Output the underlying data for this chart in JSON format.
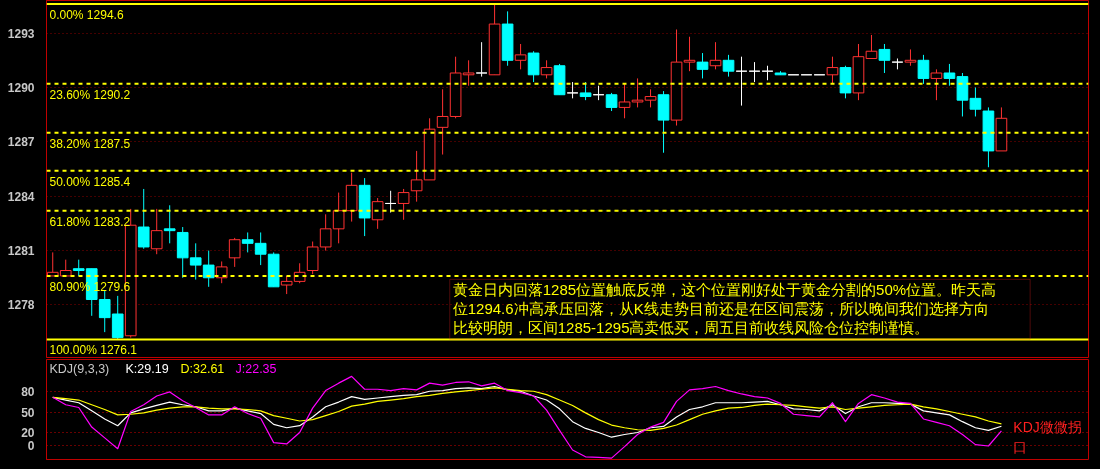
{
  "chart_data": [
    {
      "type": "candlestick",
      "categories": [
        null,
        null,
        null,
        null,
        null,
        null,
        null,
        null,
        null,
        null,
        null,
        null,
        null,
        null,
        null,
        null,
        null,
        null,
        null,
        null,
        null,
        null,
        null,
        null,
        null,
        null,
        null,
        null,
        null,
        null,
        null,
        null,
        null,
        null,
        null,
        null,
        null,
        null,
        null,
        null,
        null,
        null,
        null,
        null,
        null,
        null,
        null,
        null,
        null,
        null,
        null,
        null,
        null,
        null,
        null,
        null,
        null,
        null,
        null,
        null,
        null,
        null,
        null,
        null,
        null,
        null,
        null,
        null,
        null,
        null,
        null,
        null,
        null,
        null
      ],
      "ohlc": [
        [
          1279.6,
          1280.9,
          1279.6,
          1279.8
        ],
        [
          1279.6,
          1280.5,
          1279.6,
          1279.9
        ],
        [
          1280.0,
          1280.5,
          1279.6,
          1279.9
        ],
        [
          1280.0,
          1280.0,
          1277.4,
          1278.3
        ],
        [
          1278.3,
          1278.8,
          1276.5,
          1277.3
        ],
        [
          1277.5,
          1278.5,
          1276.1,
          1276.2
        ],
        [
          1276.3,
          1283.3,
          1276.2,
          1282.4
        ],
        [
          1282.3,
          1284.4,
          1281.1,
          1281.2
        ],
        [
          1281.1,
          1283.3,
          1280.8,
          1282.1
        ],
        [
          1282.2,
          1283.5,
          1281.4,
          1282.1
        ],
        [
          1282.0,
          1282.3,
          1279.5,
          1280.6
        ],
        [
          1280.6,
          1281.4,
          1279.4,
          1280.2
        ],
        [
          1280.2,
          1281.0,
          1279.0,
          1279.5
        ],
        [
          1279.5,
          1280.4,
          1279.2,
          1280.1
        ],
        [
          1280.6,
          1281.7,
          1280.1,
          1281.6
        ],
        [
          1281.6,
          1282.0,
          1280.9,
          1281.4
        ],
        [
          1281.4,
          1282.0,
          1280.2,
          1280.8
        ],
        [
          1280.8,
          1280.9,
          1279.0,
          1279.0
        ],
        [
          1279.1,
          1279.6,
          1278.6,
          1279.3
        ],
        [
          1279.3,
          1280.3,
          1279.2,
          1279.8
        ],
        [
          1279.9,
          1281.5,
          1279.7,
          1281.2
        ],
        [
          1281.2,
          1283.0,
          1281.0,
          1282.2
        ],
        [
          1282.2,
          1284.2,
          1281.4,
          1283.2
        ],
        [
          1283.2,
          1285.3,
          1282.6,
          1284.6
        ],
        [
          1284.6,
          1285.0,
          1281.8,
          1282.8
        ],
        [
          1282.7,
          1283.9,
          1282.2,
          1283.7
        ],
        [
          1283.6,
          1284.3,
          1283.1,
          1283.6
        ],
        [
          1283.6,
          1284.4,
          1282.7,
          1284.2
        ],
        [
          1284.3,
          1286.5,
          1283.7,
          1284.9
        ],
        [
          1284.9,
          1288.3,
          1284.9,
          1287.7
        ],
        [
          1287.8,
          1289.9,
          1286.3,
          1288.4
        ],
        [
          1288.4,
          1291.7,
          1288.3,
          1290.8
        ],
        [
          1290.7,
          1291.5,
          1290.1,
          1290.8
        ],
        [
          1290.8,
          1292.5,
          1290.6,
          1290.8
        ],
        [
          1290.7,
          1294.6,
          1290.7,
          1293.5
        ],
        [
          1293.5,
          1294.2,
          1291.2,
          1291.5
        ],
        [
          1291.5,
          1292.4,
          1291.0,
          1291.8
        ],
        [
          1291.9,
          1292.0,
          1290.3,
          1290.7
        ],
        [
          1290.7,
          1291.5,
          1290.5,
          1291.1
        ],
        [
          1291.2,
          1291.3,
          1289.6,
          1289.6
        ],
        [
          1289.7,
          1290.3,
          1289.4,
          1289.7
        ],
        [
          1289.7,
          1290.3,
          1289.3,
          1289.5
        ],
        [
          1289.6,
          1290.1,
          1289.3,
          1289.6
        ],
        [
          1289.6,
          1289.7,
          1288.7,
          1288.9
        ],
        [
          1288.9,
          1290.2,
          1288.3,
          1289.2
        ],
        [
          1289.2,
          1290.5,
          1288.9,
          1289.3
        ],
        [
          1289.3,
          1289.9,
          1288.9,
          1289.5
        ],
        [
          1289.6,
          1289.8,
          1286.4,
          1288.2
        ],
        [
          1288.2,
          1293.2,
          1287.9,
          1291.4
        ],
        [
          1291.4,
          1292.8,
          1290.9,
          1291.5
        ],
        [
          1291.4,
          1291.9,
          1290.5,
          1291.0
        ],
        [
          1291.2,
          1292.5,
          1291.0,
          1291.5
        ],
        [
          1291.5,
          1291.8,
          1290.6,
          1290.9
        ],
        [
          1290.9,
          1291.7,
          1289.0,
          1290.9
        ],
        [
          1290.9,
          1291.4,
          1290.3,
          1290.9
        ],
        [
          1290.9,
          1291.2,
          1290.4,
          1290.9
        ],
        [
          1290.8,
          1290.9,
          1290.7,
          1290.7
        ],
        [
          1290.7,
          1290.7,
          1290.7,
          1290.7
        ],
        [
          1290.7,
          1290.7,
          1290.7,
          1290.7
        ],
        [
          1290.7,
          1290.7,
          1290.7,
          1290.7
        ],
        [
          1290.7,
          1291.7,
          1290.2,
          1291.1
        ],
        [
          1291.1,
          1291.2,
          1289.4,
          1289.7
        ],
        [
          1289.7,
          1292.4,
          1289.3,
          1291.7
        ],
        [
          1291.6,
          1292.9,
          1291.6,
          1292.0
        ],
        [
          1292.1,
          1292.4,
          1290.8,
          1291.5
        ],
        [
          1291.4,
          1291.6,
          1291.0,
          1291.4
        ],
        [
          1291.4,
          1292.1,
          1291.2,
          1291.5
        ],
        [
          1291.5,
          1291.8,
          1290.2,
          1290.5
        ],
        [
          1290.5,
          1291.0,
          1289.3,
          1290.8
        ],
        [
          1290.8,
          1291.3,
          1290.1,
          1290.5
        ],
        [
          1290.6,
          1290.8,
          1288.4,
          1289.3
        ],
        [
          1289.4,
          1290.0,
          1288.4,
          1288.8
        ],
        [
          1288.7,
          1288.9,
          1285.6,
          1286.5
        ],
        [
          1286.5,
          1288.9,
          1286.5,
          1288.3
        ]
      ],
      "colors": [
        "#ff3232",
        "#ff3232",
        "#00ffff",
        "#00ffff",
        "#00ffff",
        "#00ffff",
        "#ff3232",
        "#00ffff",
        "#ff3232",
        "#00ffff",
        "#00ffff",
        "#00ffff",
        "#00ffff",
        "#ff3232",
        "#ff3232",
        "#00ffff",
        "#00ffff",
        "#00ffff",
        "#ff3232",
        "#ff3232",
        "#ff3232",
        "#ff3232",
        "#ff3232",
        "#ff3232",
        "#00ffff",
        "#ff3232",
        "#ffffff",
        "#ff3232",
        "#ff3232",
        "#ff3232",
        "#ff3232",
        "#ff3232",
        "#ff3232",
        "#ffffff",
        "#ff3232",
        "#00ffff",
        "#ff3232",
        "#00ffff",
        "#ff3232",
        "#00ffff",
        "#ffffff",
        "#00ffff",
        "#ffffff",
        "#00ffff",
        "#ff3232",
        "#ff3232",
        "#ff3232",
        "#00ffff",
        "#ff3232",
        "#ff3232",
        "#00ffff",
        "#ff3232",
        "#00ffff",
        "#ffffff",
        "#ffffff",
        "#ffffff",
        "#00ffff",
        "#ffffff",
        "#ffffff",
        "#ffffff",
        "#ff3232",
        "#00ffff",
        "#ff3232",
        "#ff3232",
        "#00ffff",
        "#ffffff",
        "#ff3232",
        "#00ffff",
        "#ff3232",
        "#00ffff",
        "#00ffff",
        "#00ffff",
        "#00ffff",
        "#ff3232"
      ],
      "ylim": [
        1275.1,
        1294.8
      ],
      "yticks": [
        1278,
        1281,
        1284,
        1287,
        1290,
        1293
      ],
      "grid": "y",
      "tick_labels": "y",
      "ref_lines": [
        {
          "axis": "y",
          "value": 1294.6,
          "label": "0.00% 1294.6",
          "color": "#ffff00",
          "line_style": "solid"
        },
        {
          "axis": "y",
          "value": 1290.2,
          "label": "23.60% 1290.2",
          "color": "#ffff00",
          "line_style": "dashed"
        },
        {
          "axis": "y",
          "value": 1287.5,
          "label": "38.20% 1287.5",
          "color": "#ffff00",
          "line_style": "dashed"
        },
        {
          "axis": "y",
          "value": 1285.4,
          "label": "50.00% 1285.4",
          "color": "#ffff00",
          "line_style": "dashed"
        },
        {
          "axis": "y",
          "value": 1283.2,
          "label": "61.80% 1283.2",
          "color": "#ffff00",
          "line_style": "dashed"
        },
        {
          "axis": "y",
          "value": 1279.6,
          "label": "80.90% 1279.6",
          "color": "#ffff00",
          "line_style": "dashed"
        },
        {
          "axis": "y",
          "value": 1276.1,
          "label": "100.00% 1276.1",
          "color": "#ffff00",
          "line_style": "solid"
        }
      ],
      "annotations": [
        "黄金日内回落1285位置触底反弹，这个位置刚好处于黄金分割的50%位置。昨天高",
        "位1294.6冲高承压回落，从K线走势目前还是在区间震荡，所以晚间我们选择方向",
        "比较明朗，区间1285-1295高卖低买，周五目前收线风险仓位控制谨慎。"
      ]
    },
    {
      "type": "line",
      "title": "KDJ(9,3,3)",
      "categories": [
        null,
        null,
        null,
        null,
        null,
        null,
        null,
        null,
        null,
        null,
        null,
        null,
        null,
        null,
        null,
        null,
        null,
        null,
        null,
        null,
        null,
        null,
        null,
        null,
        null,
        null,
        null,
        null,
        null,
        null,
        null,
        null,
        null,
        null,
        null,
        null,
        null,
        null,
        null,
        null,
        null,
        null,
        null,
        null,
        null,
        null,
        null,
        null,
        null,
        null,
        null,
        null,
        null,
        null,
        null,
        null,
        null,
        null,
        null,
        null,
        null,
        null,
        null,
        null,
        null,
        null,
        null,
        null,
        null,
        null,
        null,
        null,
        null,
        null
      ],
      "series": [
        {
          "name": "K:29.19",
          "color": "#ffffff",
          "values": [
            72,
            68,
            64,
            52,
            40,
            30,
            49,
            55,
            60,
            65,
            61,
            58,
            52,
            52,
            56,
            52,
            48,
            32,
            27,
            30,
            43,
            58,
            65,
            73,
            69,
            71,
            73,
            75,
            76,
            81,
            82,
            85,
            86,
            85,
            88,
            83,
            81,
            74,
            68,
            55,
            36,
            26,
            20,
            13,
            17,
            20,
            27,
            29,
            43,
            54,
            58,
            64,
            64,
            64,
            65,
            66,
            61,
            55,
            54,
            52,
            61,
            48,
            58,
            64,
            64,
            63,
            62,
            52,
            49,
            46,
            36,
            27,
            23,
            29.19
          ]
        },
        {
          "name": "D:32.61",
          "color": "#ffff00",
          "values": [
            72,
            70,
            68,
            61,
            54,
            46,
            47,
            49,
            53,
            56,
            58,
            58,
            56,
            55,
            55,
            54,
            52,
            45,
            41,
            37,
            39,
            45,
            51,
            59,
            62,
            66,
            68,
            70,
            73,
            75,
            78,
            80,
            82,
            84,
            86,
            84,
            82,
            81,
            76,
            68,
            60,
            49,
            39,
            31,
            27,
            24,
            23,
            26,
            31,
            39,
            47,
            52,
            56,
            57,
            60,
            62,
            61,
            60,
            58,
            56,
            58,
            54,
            56,
            58,
            60,
            61,
            62,
            58,
            55,
            51,
            47,
            43,
            37,
            32.61
          ]
        },
        {
          "name": "J:22.35",
          "color": "#ff00ff",
          "values": [
            72,
            61,
            57,
            28,
            12,
            -4,
            51,
            61,
            74,
            80,
            67,
            57,
            46,
            46,
            58,
            48,
            41,
            5,
            3,
            20,
            56,
            82,
            93,
            103,
            84,
            84,
            82,
            85,
            83,
            93,
            90,
            94,
            95,
            89,
            93,
            82,
            79,
            74,
            53,
            23,
            -6,
            -16,
            -17,
            -18,
            -1,
            17,
            28,
            35,
            66,
            83,
            85,
            88,
            82,
            77,
            73,
            71,
            63,
            47,
            45,
            43,
            64,
            36,
            63,
            76,
            71,
            65,
            63,
            40,
            35,
            30,
            17,
            2,
            0,
            22.35
          ]
        }
      ],
      "ylim": [
        -20,
        128
      ],
      "yticks": [
        0,
        20,
        50,
        80
      ],
      "grid": "y",
      "tick_labels": "y",
      "legend": "top left",
      "annotations": [
        "KDJ微微拐",
        "口"
      ]
    }
  ]
}
